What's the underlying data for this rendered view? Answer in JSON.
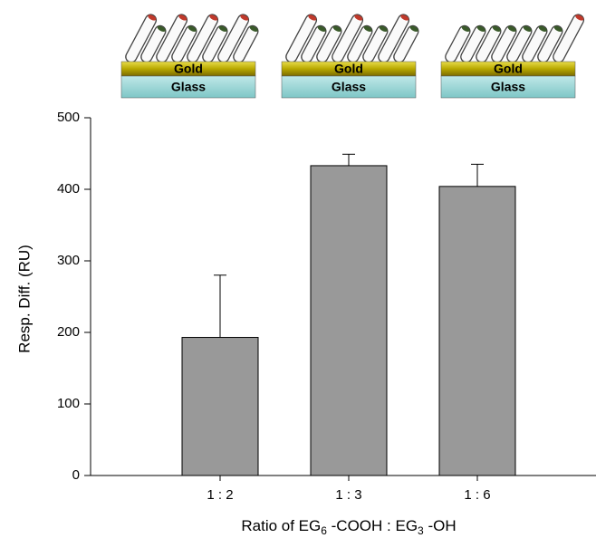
{
  "chart_data": {
    "type": "bar",
    "y_label": "Resp. Diff. (RU)",
    "x_label": [
      {
        "text": "Ratio of EG"
      },
      {
        "text": "6",
        "sub": true
      },
      {
        "text": " -COOH : EG"
      },
      {
        "text": "3",
        "sub": true
      },
      {
        "text": " -OH"
      }
    ],
    "categories": [
      "1 : 2",
      "1 : 3",
      "1 : 6"
    ],
    "values": [
      193,
      433,
      404
    ],
    "errors": [
      87,
      16,
      31
    ],
    "color": "#999999",
    "ylim": [
      0,
      500
    ],
    "yticks": [
      0,
      100,
      200,
      300,
      400,
      500
    ],
    "substrates": [
      {
        "top": "Gold",
        "bottom": "Glass"
      },
      {
        "top": "Gold",
        "bottom": "Glass"
      },
      {
        "top": "Gold",
        "bottom": "Glass"
      }
    ]
  }
}
